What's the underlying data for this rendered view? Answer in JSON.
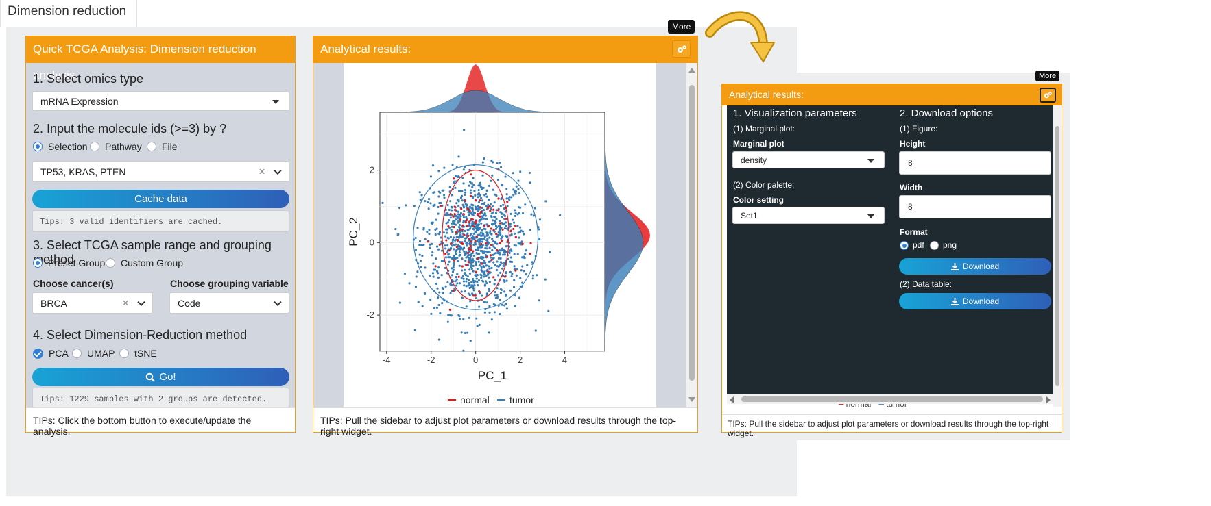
{
  "tab": {
    "label": "Dimension reduction"
  },
  "left_panel": {
    "title": "Quick TCGA Analysis: Dimension reduction analysis",
    "step1": "1. Select omics type",
    "omics_value": "mRNA Expression",
    "step2": "2. Input the molecule ids (>=3) by ?",
    "input_modes": [
      "Selection",
      "Pathway",
      "File"
    ],
    "ids_value": "TP53, KRAS, PTEN",
    "cache_button": "Cache data",
    "cache_tip": "Tips: 3 valid identifiers are cached.",
    "step3": "3. Select TCGA sample range and grouping method",
    "group_modes": [
      "Preset Group",
      "Custom Group"
    ],
    "cancer_label": "Choose cancer(s)",
    "cancer_value": "BRCA",
    "grouping_label": "Choose grouping variable",
    "grouping_value": "Code",
    "step4": "4. Select Dimension-Reduction method",
    "methods": [
      "PCA",
      "UMAP",
      "tSNE"
    ],
    "go_button": "Go!",
    "go_tip": "Tips: 1229 samples with 2 groups are detected.",
    "footer": "TIPs: Click the bottom button to execute/update the analysis."
  },
  "results_panel": {
    "title": "Analytical results:",
    "more_tooltip": "More",
    "footer": "TIPs: Pull the sidebar to adjust plot parameters or download results through the top-right widget."
  },
  "chart_data": {
    "type": "scatter",
    "xlabel": "PC_1",
    "ylabel": "PC_2",
    "xlim": [
      -4.3,
      5.8
    ],
    "ylim": [
      -3.0,
      3.6
    ],
    "x_ticks": [
      "-4",
      "-2",
      "0",
      "2",
      "4"
    ],
    "y_ticks": [
      "-2",
      "0",
      "2"
    ],
    "grid": true,
    "legend_position": "bottom",
    "marginal": "density",
    "series": [
      {
        "name": "normal",
        "color": "#e41a1c",
        "center": [
          0.0,
          0.2
        ],
        "spread": [
          0.9,
          0.7
        ],
        "count": 113
      },
      {
        "name": "tumor",
        "color": "#377eb8",
        "center": [
          0.0,
          0.0
        ],
        "spread": [
          1.2,
          0.95
        ],
        "count": 1116
      }
    ],
    "ellipses": [
      {
        "series": "normal",
        "center": [
          0.0,
          0.2
        ],
        "rx": 1.5,
        "ry": 1.8
      },
      {
        "series": "tumor",
        "center": [
          0.0,
          0.15
        ],
        "rx": 2.8,
        "ry": 2.0
      }
    ]
  },
  "zoom_panel": {
    "title": "Analytical results:",
    "more_tooltip": "More",
    "viz_heading": "1. Visualization parameters",
    "marginal_section": "(1) Marginal plot:",
    "marginal_label": "Marginal plot",
    "marginal_value": "density",
    "palette_section": "(2) Color palette:",
    "color_label": "Color setting",
    "color_value": "Set1",
    "download_heading": "2. Download options",
    "figure_section": "(1) Figure:",
    "height_label": "Height",
    "height_value": "8",
    "width_label": "Width",
    "width_value": "8",
    "format_label": "Format",
    "formats": [
      "pdf",
      "png"
    ],
    "download_label": "Download",
    "table_section": "(2) Data table:",
    "download2_label": "Download",
    "legend_normal": "normal",
    "legend_tumor": "tumor",
    "footer": "TIPs: Pull the sidebar to adjust plot parameters or download results through the top-right widget."
  },
  "colors": {
    "accent": "#f39c12",
    "normal": "#e41a1c",
    "tumor": "#377eb8",
    "dark_bg": "#1f2a30"
  }
}
